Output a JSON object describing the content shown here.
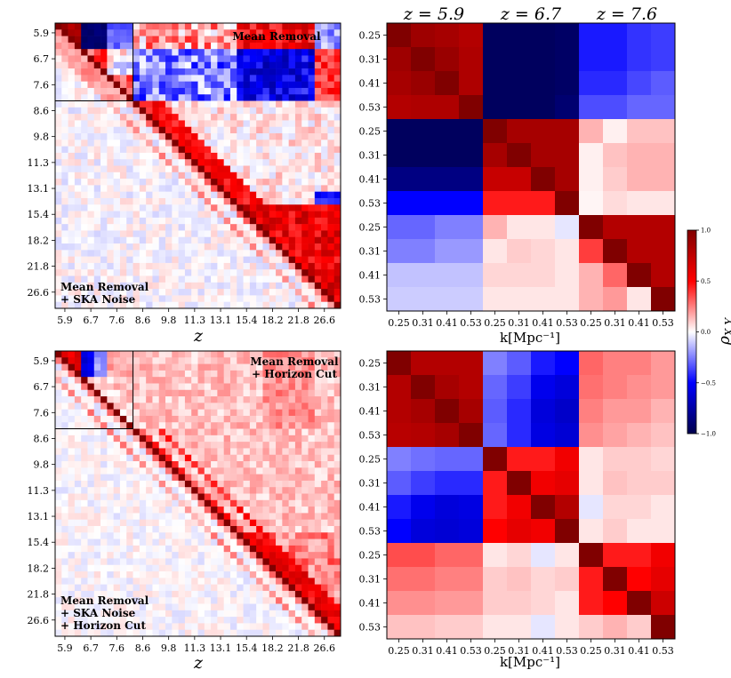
{
  "chart_data": [
    {
      "type": "heatmap",
      "id": "top-left",
      "annotations": [
        "Mean Removal",
        "Mean Removal",
        "+ SKA Noise"
      ],
      "annotation_positions": [
        "top-right",
        "bottom-left",
        "bottom-left"
      ],
      "xlabel": "z",
      "tick_labels": [
        "5.9",
        "6.7",
        "7.6",
        "8.6",
        "9.8",
        "11.3",
        "13.1",
        "15.4",
        "18.2",
        "21.8",
        "26.6"
      ],
      "bins_per_redshift": 4,
      "block_boundary_after_bin": 12,
      "structure": "upper triangle = Mean Removal correlation (strong blocks at z=5.9-7.6 and anti-correlation between z<8 and z>15); lower triangle = Mean Removal + SKA Noise (near diagonal, weak off-diagonal)"
    },
    {
      "type": "heatmap",
      "id": "top-right",
      "title_labels": [
        "z = 5.9",
        "z = 6.7",
        "z = 7.6"
      ],
      "xlabel": "k[Mpc⁻¹]",
      "k_labels": [
        "0.25",
        "0.31",
        "0.41",
        "0.53"
      ],
      "matrix": [
        [
          1.0,
          0.88,
          0.85,
          0.8,
          -0.95,
          -0.95,
          -0.95,
          -0.93,
          -0.45,
          -0.45,
          -0.4,
          -0.38
        ],
        [
          0.88,
          1.0,
          0.9,
          0.82,
          -0.95,
          -0.95,
          -0.95,
          -0.93,
          -0.45,
          -0.45,
          -0.4,
          -0.38
        ],
        [
          0.85,
          0.9,
          1.0,
          0.82,
          -0.95,
          -0.95,
          -0.95,
          -0.93,
          -0.42,
          -0.42,
          -0.36,
          -0.32
        ],
        [
          0.8,
          0.82,
          0.82,
          1.0,
          -0.95,
          -0.95,
          -0.95,
          -0.9,
          -0.35,
          -0.35,
          -0.3,
          -0.3
        ],
        [
          -0.95,
          -0.95,
          -0.95,
          -0.95,
          1.0,
          0.85,
          0.85,
          0.85,
          0.15,
          0.03,
          0.12,
          0.12
        ],
        [
          -0.95,
          -0.95,
          -0.95,
          -0.95,
          0.85,
          1.0,
          0.85,
          0.85,
          0.03,
          0.12,
          0.15,
          0.15
        ],
        [
          -0.85,
          -0.85,
          -0.85,
          -0.85,
          0.72,
          0.72,
          1.0,
          0.85,
          0.03,
          0.1,
          0.15,
          0.15
        ],
        [
          -0.5,
          -0.5,
          -0.5,
          -0.5,
          0.45,
          0.45,
          0.45,
          1.0,
          0.02,
          0.07,
          0.05,
          0.05
        ],
        [
          -0.3,
          -0.3,
          -0.25,
          -0.25,
          0.15,
          0.05,
          0.05,
          -0.05,
          1.0,
          0.8,
          0.8,
          0.8
        ],
        [
          -0.25,
          -0.25,
          -0.2,
          -0.2,
          0.05,
          0.1,
          0.08,
          0.05,
          0.38,
          1.0,
          0.8,
          0.8
        ],
        [
          -0.12,
          -0.12,
          -0.12,
          -0.12,
          0.08,
          0.08,
          0.08,
          0.05,
          0.15,
          0.3,
          1.0,
          0.8
        ],
        [
          -0.1,
          -0.1,
          -0.1,
          -0.1,
          0.05,
          0.05,
          0.05,
          0.05,
          0.15,
          0.2,
          0.05,
          1.0
        ]
      ]
    },
    {
      "type": "heatmap",
      "id": "bottom-left",
      "annotations": [
        "Mean Removal",
        "+ Horizon Cut",
        "Mean Removal",
        "+ SKA Noise",
        "+ Horizon Cut"
      ],
      "annotation_positions": [
        "top-right",
        "top-right",
        "bottom-left",
        "bottom-left",
        "bottom-left"
      ],
      "xlabel": "z",
      "tick_labels": [
        "5.9",
        "6.7",
        "7.6",
        "8.6",
        "9.8",
        "11.3",
        "13.1",
        "15.4",
        "18.2",
        "21.8",
        "26.6"
      ],
      "bins_per_redshift": 4,
      "block_boundary_after_bin": 12
    },
    {
      "type": "heatmap",
      "id": "bottom-right",
      "xlabel": "k[Mpc⁻¹]",
      "k_labels": [
        "0.25",
        "0.31",
        "0.41",
        "0.53"
      ],
      "matrix": [
        [
          1.0,
          0.8,
          0.8,
          0.8,
          -0.25,
          -0.32,
          -0.45,
          -0.5,
          0.3,
          0.25,
          0.25,
          0.2
        ],
        [
          0.8,
          1.0,
          0.85,
          0.8,
          -0.3,
          -0.38,
          -0.55,
          -0.6,
          0.28,
          0.25,
          0.22,
          0.2
        ],
        [
          0.8,
          0.85,
          1.0,
          0.85,
          -0.32,
          -0.42,
          -0.6,
          -0.65,
          0.25,
          0.2,
          0.2,
          0.15
        ],
        [
          0.78,
          0.8,
          0.85,
          1.0,
          -0.3,
          -0.42,
          -0.58,
          -0.62,
          0.22,
          0.18,
          0.15,
          0.12
        ],
        [
          -0.25,
          -0.28,
          -0.3,
          -0.3,
          1.0,
          0.45,
          0.45,
          0.55,
          0.05,
          0.1,
          0.1,
          0.08
        ],
        [
          -0.32,
          -0.38,
          -0.42,
          -0.42,
          0.45,
          1.0,
          0.55,
          0.6,
          0.05,
          0.12,
          0.1,
          0.1
        ],
        [
          -0.45,
          -0.55,
          -0.6,
          -0.58,
          0.45,
          0.55,
          1.0,
          0.8,
          -0.05,
          0.08,
          0.08,
          0.05
        ],
        [
          -0.5,
          -0.6,
          -0.62,
          -0.6,
          0.5,
          0.6,
          0.55,
          1.0,
          0.05,
          0.1,
          0.05,
          0.05
        ],
        [
          0.35,
          0.35,
          0.3,
          0.3,
          0.05,
          0.08,
          -0.05,
          0.05,
          1.0,
          0.45,
          0.45,
          0.55
        ],
        [
          0.28,
          0.28,
          0.25,
          0.25,
          0.1,
          0.12,
          0.08,
          0.1,
          0.45,
          1.0,
          0.5,
          0.6
        ],
        [
          0.22,
          0.22,
          0.2,
          0.2,
          0.1,
          0.1,
          0.08,
          0.05,
          0.45,
          0.5,
          1.0,
          0.7
        ],
        [
          0.12,
          0.12,
          0.1,
          0.1,
          0.05,
          0.05,
          -0.05,
          0.05,
          0.1,
          0.15,
          0.1,
          1.0
        ]
      ]
    }
  ],
  "colorbar": {
    "label": "ρX,Y",
    "label_main": "ρ",
    "label_sub": "X,Y",
    "ticks": [
      "1.0",
      "0.5",
      "0.0",
      "−0.5",
      "−1.0"
    ],
    "tick_values": [
      1.0,
      0.5,
      0.0,
      -0.5,
      -1.0
    ],
    "range": [
      -1.0,
      1.0
    ],
    "colormap": "seismic",
    "colors": {
      "low": "#00004c",
      "mid_low": "#0000ff",
      "mid": "#ffffff",
      "mid_high": "#ff0000",
      "high": "#800000"
    }
  }
}
